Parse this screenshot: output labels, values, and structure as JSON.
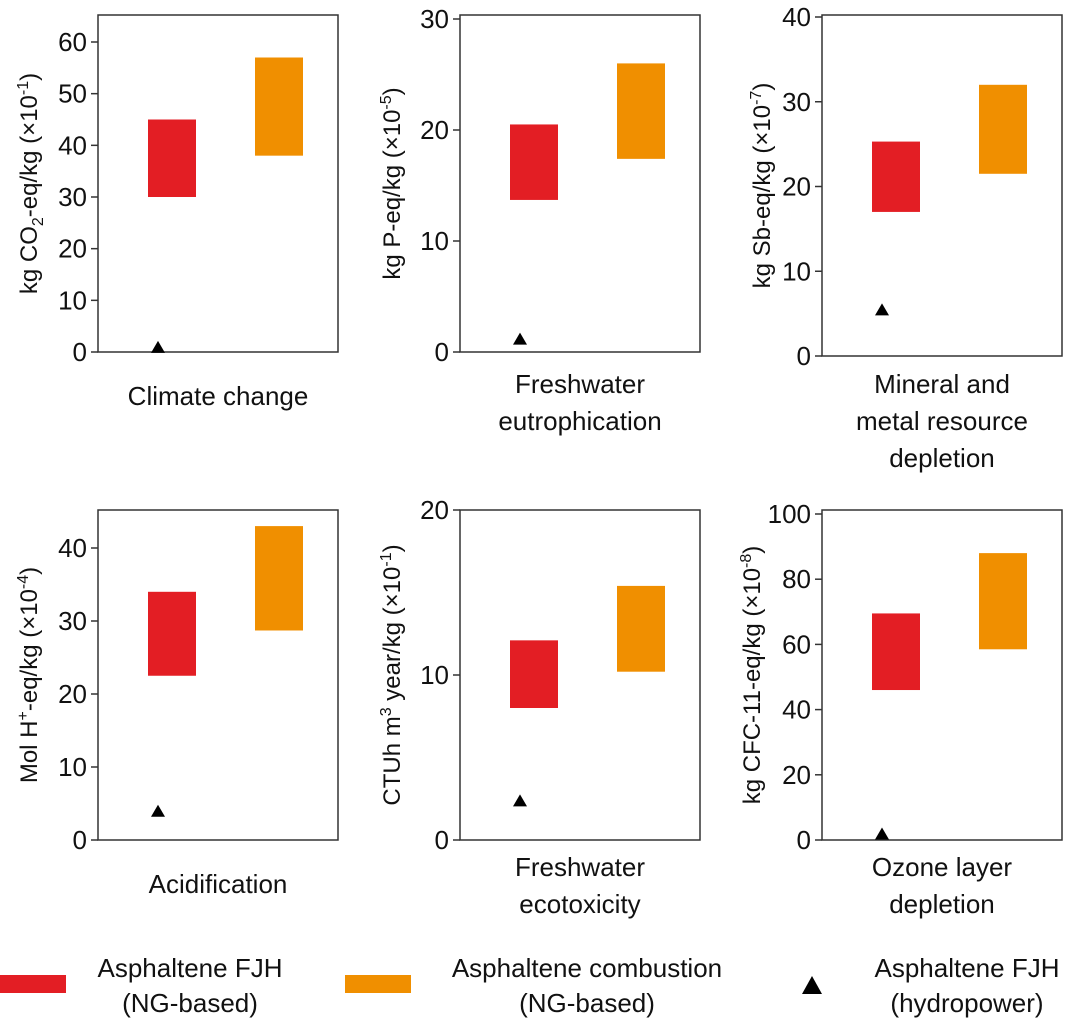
{
  "colors": {
    "fjh_ng": "#e31e24",
    "combustion_ng": "#f08f00",
    "fjh_hydro": "#000000",
    "frame": "#333333"
  },
  "legend": [
    {
      "name": "Asphaltene FJH",
      "sub": "(NG-based)",
      "color": "#e31e24",
      "shape": "rect"
    },
    {
      "name": "Asphaltene combustion",
      "sub": "(NG-based)",
      "color": "#f08f00",
      "shape": "rect"
    },
    {
      "name": "Asphaltene FJH",
      "sub": "(hydropower)",
      "color": "#000000",
      "shape": "triangle"
    }
  ],
  "chart_data": [
    {
      "type": "floating-bar",
      "xlabel": [
        "Climate change"
      ],
      "ylabel": {
        "main": "kg CO",
        "sub": "2",
        "rest": "-eq/kg (×10",
        "sup": "-1",
        "end": ")"
      },
      "ylim": [
        0,
        65
      ],
      "yticks": [
        0,
        10,
        20,
        30,
        40,
        50,
        60
      ],
      "ranges": {
        "fjh_ng": [
          30,
          45
        ],
        "combustion_ng": [
          38,
          57
        ]
      },
      "point": 1
    },
    {
      "type": "floating-bar",
      "xlabel": [
        "Freshwater",
        "eutrophication"
      ],
      "ylabel": {
        "main": "kg P-eq/kg (×10",
        "sup": "-5",
        "end": ")"
      },
      "ylim": [
        0,
        30
      ],
      "yticks": [
        0,
        10,
        20,
        30
      ],
      "ranges": {
        "fjh_ng": [
          13.7,
          20.5
        ],
        "combustion_ng": [
          17.4,
          26
        ]
      },
      "point": 1.2
    },
    {
      "type": "floating-bar",
      "xlabel": [
        "Mineral and",
        "metal resource",
        "depletion"
      ],
      "ylabel": {
        "main": "kg Sb-eq/kg (×10",
        "sup": "-7",
        "end": ")"
      },
      "ylim": [
        0,
        40
      ],
      "yticks": [
        0,
        10,
        20,
        30,
        40
      ],
      "ranges": {
        "fjh_ng": [
          17,
          25.3
        ],
        "combustion_ng": [
          21.5,
          32
        ]
      },
      "point": 5.5
    },
    {
      "type": "floating-bar",
      "xlabel": [
        "Acidification"
      ],
      "ylabel": {
        "main": "Mol H",
        "supA": "+",
        "rest": "-eq/kg (×10",
        "sup": "-4",
        "end": ")"
      },
      "ylim": [
        0,
        45
      ],
      "yticks": [
        0,
        10,
        20,
        30,
        40
      ],
      "ranges": {
        "fjh_ng": [
          22.5,
          34
        ],
        "combustion_ng": [
          28.7,
          43
        ]
      },
      "point": 4
    },
    {
      "type": "floating-bar",
      "xlabel": [
        "Freshwater",
        "ecotoxicity"
      ],
      "ylabel": {
        "main": "CTUh m",
        "supA": "3",
        "rest": " year/kg (×10",
        "sup": "-1",
        "end": ")"
      },
      "ylim": [
        0,
        20
      ],
      "yticks": [
        0,
        10,
        20
      ],
      "ranges": {
        "fjh_ng": [
          8,
          12.1
        ],
        "combustion_ng": [
          10.2,
          15.4
        ]
      },
      "point": 2.4
    },
    {
      "type": "floating-bar",
      "xlabel": [
        "Ozone layer",
        "depletion"
      ],
      "ylabel": {
        "main": "kg CFC-11-eq/kg (×10",
        "sup": "-8",
        "end": ")"
      },
      "ylim": [
        0,
        100
      ],
      "yticks": [
        0,
        20,
        40,
        60,
        80,
        100
      ],
      "ranges": {
        "fjh_ng": [
          46,
          69.5
        ],
        "combustion_ng": [
          58.5,
          88
        ]
      },
      "point": 2
    }
  ]
}
